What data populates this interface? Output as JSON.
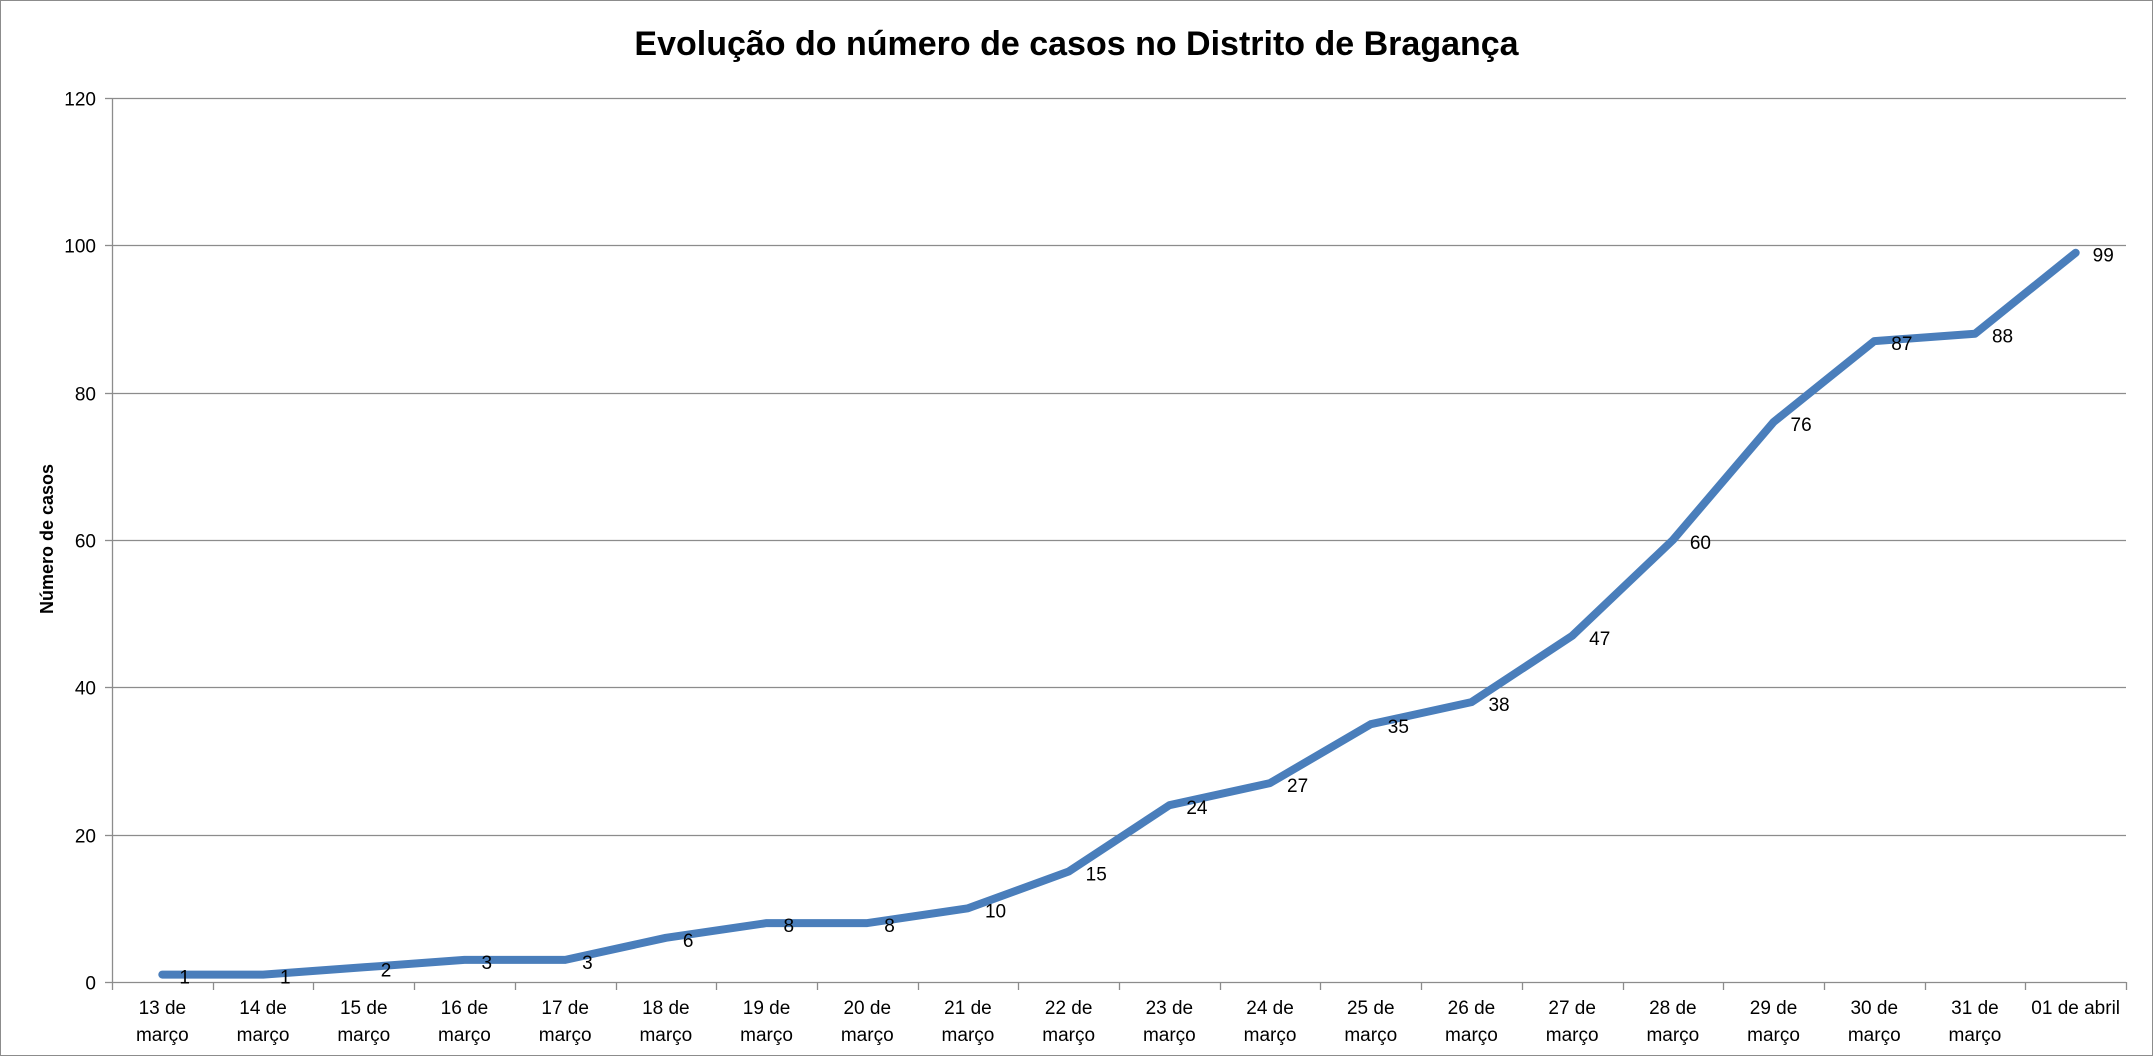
{
  "chart_data": {
    "type": "line",
    "title": "Evolução do número de casos no Distrito de Bragança",
    "xlabel": "",
    "ylabel": "Número de casos",
    "ylim": [
      0,
      120
    ],
    "yticks": [
      0,
      20,
      40,
      60,
      80,
      100,
      120
    ],
    "grid": true,
    "legend": "none",
    "categories": [
      [
        "13 de",
        "março"
      ],
      [
        "14 de",
        "março"
      ],
      [
        "15 de",
        "março"
      ],
      [
        "16 de",
        "março"
      ],
      [
        "17 de",
        "março"
      ],
      [
        "18 de",
        "março"
      ],
      [
        "19 de",
        "março"
      ],
      [
        "20 de",
        "março"
      ],
      [
        "21 de",
        "março"
      ],
      [
        "22 de",
        "março"
      ],
      [
        "23 de",
        "março"
      ],
      [
        "24 de",
        "março"
      ],
      [
        "25 de",
        "março"
      ],
      [
        "26 de",
        "março"
      ],
      [
        "27 de",
        "março"
      ],
      [
        "28 de",
        "março"
      ],
      [
        "29 de",
        "março"
      ],
      [
        "30 de",
        "março"
      ],
      [
        "31 de",
        "março"
      ],
      [
        "01 de abril"
      ]
    ],
    "series": [
      {
        "values": [
          1,
          1,
          2,
          3,
          3,
          6,
          8,
          8,
          10,
          15,
          24,
          27,
          35,
          38,
          47,
          60,
          76,
          87,
          88,
          99
        ],
        "color": "#4a7ebb"
      }
    ],
    "gridline_color": "#8c8c8c"
  }
}
